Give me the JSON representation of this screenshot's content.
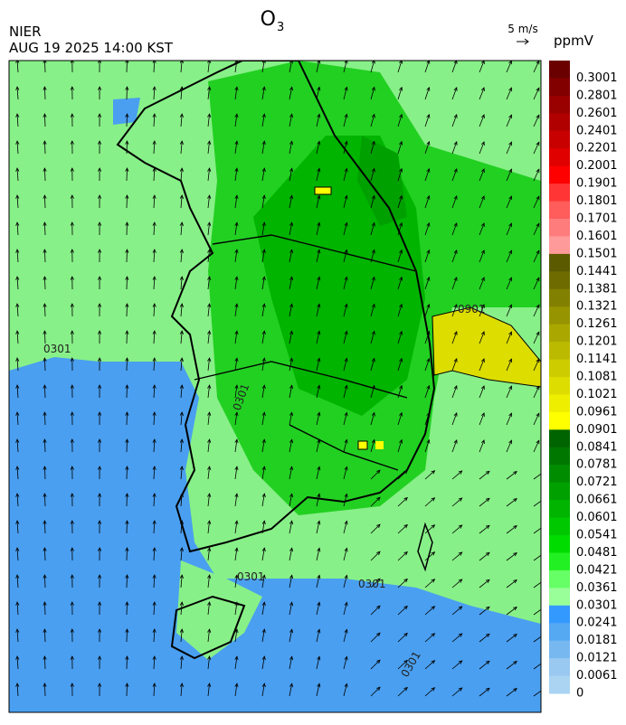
{
  "header": {
    "title": "O",
    "title_subscript": "3",
    "agency": "NIER",
    "datetime": "AUG 19 2025 14:00 KST",
    "wind_scale": "5 m/s"
  },
  "legend": {
    "unit": "ppmV",
    "levels": [
      {
        "label": 0.3001,
        "color": "#6b0000"
      },
      {
        "label": 0.2801,
        "color": "#820000"
      },
      {
        "label": 0.2601,
        "color": "#990000"
      },
      {
        "label": 0.2401,
        "color": "#b00000"
      },
      {
        "label": 0.2201,
        "color": "#c80000"
      },
      {
        "label": 0.2001,
        "color": "#e00000"
      },
      {
        "label": 0.1901,
        "color": "#ff0000"
      },
      {
        "label": 0.1801,
        "color": "#ff3434"
      },
      {
        "label": 0.1701,
        "color": "#ff5c5c"
      },
      {
        "label": 0.1601,
        "color": "#ff7c7c"
      },
      {
        "label": 0.1501,
        "color": "#ff9a9a"
      },
      {
        "label": 0.1441,
        "color": "#5c5a00"
      },
      {
        "label": 0.1381,
        "color": "#6e6c00"
      },
      {
        "label": 0.1321,
        "color": "#828000"
      },
      {
        "label": 0.1261,
        "color": "#969400"
      },
      {
        "label": 0.1201,
        "color": "#aaa800"
      },
      {
        "label": 0.1141,
        "color": "#bcba00"
      },
      {
        "label": 0.1081,
        "color": "#cccc00"
      },
      {
        "label": 0.1021,
        "color": "#dddd00"
      },
      {
        "label": 0.0961,
        "color": "#eeee00"
      },
      {
        "label": 0.0901,
        "color": "#ffff00"
      },
      {
        "label": 0.0841,
        "color": "#006400"
      },
      {
        "label": 0.0781,
        "color": "#007800"
      },
      {
        "label": 0.0721,
        "color": "#008c00"
      },
      {
        "label": 0.0661,
        "color": "#00a000"
      },
      {
        "label": 0.0601,
        "color": "#00b400"
      },
      {
        "label": 0.0541,
        "color": "#00c800"
      },
      {
        "label": 0.0481,
        "color": "#00dc00"
      },
      {
        "label": 0.0421,
        "color": "#22f022"
      },
      {
        "label": 0.0361,
        "color": "#66ff66"
      },
      {
        "label": 0.0301,
        "color": "#99ff99"
      },
      {
        "label": 0.0241,
        "color": "#3399ff"
      },
      {
        "label": 0.0181,
        "color": "#55a8f2"
      },
      {
        "label": 0.0121,
        "color": "#77b8f0"
      },
      {
        "label": 0.0061,
        "color": "#99c8f0"
      },
      {
        "label": 0,
        "color": "#aad4f2"
      }
    ]
  },
  "map": {
    "contour_labels": [
      "0301",
      "0301",
      "0901",
      "0301",
      "0301",
      "0301"
    ]
  }
}
